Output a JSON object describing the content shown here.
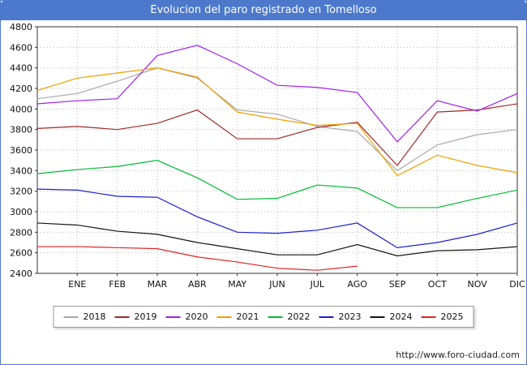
{
  "title": "Evolucion del paro registrado en Tomelloso",
  "footer": {
    "url": "http://www.foro-ciudad.com"
  },
  "colors": {
    "titlebar": "#4d79cc",
    "grid": "#b8b8b8",
    "axis": "#333333",
    "tick_text": "#111111"
  },
  "chart_data": {
    "type": "line",
    "title": "Evolucion del paro registrado en Tomelloso",
    "categories": [
      "ENE",
      "FEB",
      "MAR",
      "ABR",
      "MAY",
      "JUN",
      "JUL",
      "AGO",
      "SEP",
      "OCT",
      "NOV",
      "DIC"
    ],
    "ylim": [
      2400,
      4800
    ],
    "ytick_step": 200,
    "grid": true,
    "legend_position": "bottom",
    "series": [
      {
        "name": "2018",
        "color": "#a8a8a8",
        "start": 4100,
        "values": [
          4150,
          4270,
          4400,
          4300,
          3990,
          3950,
          3830,
          3780,
          3400,
          3650,
          3750,
          3800
        ]
      },
      {
        "name": "2019",
        "color": "#9e2a2a",
        "start": 3810,
        "values": [
          3830,
          3800,
          3860,
          3990,
          3710,
          3710,
          3820,
          3870,
          3450,
          3970,
          3990,
          4050
        ]
      },
      {
        "name": "2020",
        "color": "#a020f0",
        "start": 4050,
        "values": [
          4080,
          4100,
          4520,
          4620,
          4440,
          4230,
          4210,
          4160,
          3680,
          4080,
          3980,
          4150
        ]
      },
      {
        "name": "2021",
        "color": "#f0a000",
        "start": 4180,
        "values": [
          4300,
          4350,
          4400,
          4310,
          3970,
          3900,
          3840,
          3860,
          3350,
          3550,
          3450,
          3380
        ]
      },
      {
        "name": "2022",
        "color": "#00bb33",
        "start": 3370,
        "values": [
          3410,
          3440,
          3500,
          3330,
          3120,
          3130,
          3260,
          3230,
          3040,
          3040,
          3130,
          3210
        ]
      },
      {
        "name": "2023",
        "color": "#1f1fd0",
        "start": 3220,
        "values": [
          3210,
          3150,
          3140,
          2950,
          2800,
          2790,
          2820,
          2890,
          2650,
          2700,
          2780,
          2890
        ]
      },
      {
        "name": "2024",
        "color": "#151515",
        "start": 2890,
        "values": [
          2870,
          2810,
          2780,
          2700,
          2640,
          2580,
          2580,
          2680,
          2570,
          2620,
          2630,
          2660
        ]
      },
      {
        "name": "2025",
        "color": "#e02222",
        "start": 2660,
        "values": [
          2660,
          2650,
          2640,
          2560,
          2510,
          2450,
          2430,
          2470
        ]
      }
    ]
  }
}
